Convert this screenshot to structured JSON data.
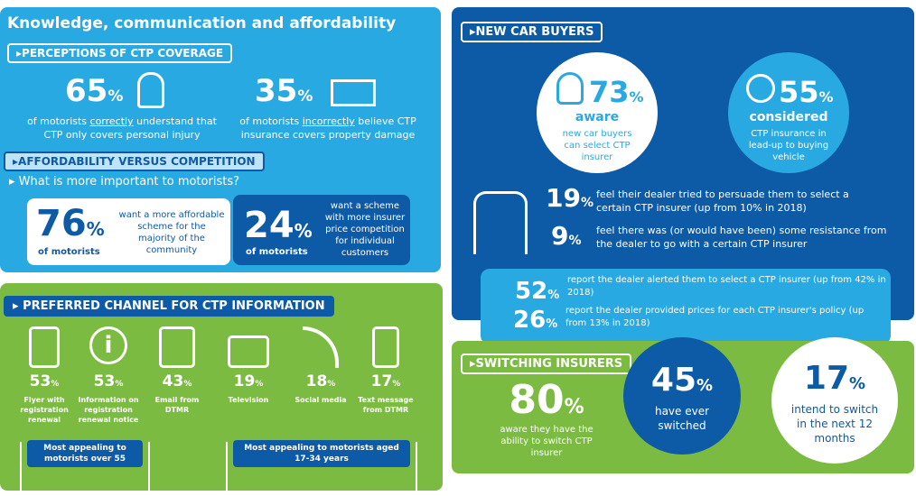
{
  "knowledge": {
    "title": "Knowledge, communication and affordability",
    "perceptions_tag": "PERCEPTIONS OF CTP COVERAGE",
    "stat1": {
      "value": "65",
      "unit": "%",
      "text_a": "of motorists ",
      "text_em": "correctly",
      "text_b": " understand that CTP only covers personal injury"
    },
    "stat2": {
      "value": "35",
      "unit": "%",
      "text_a": "of motorists ",
      "text_em": "incorrectly",
      "text_b": " believe CTP insurance covers property damage"
    },
    "affordability_tag": "AFFORDABILITY VERSUS COMPETITION",
    "question": "What is more important to motorists?",
    "card1": {
      "value": "76",
      "unit": "%",
      "label": "of motorists",
      "text": "want a more affordable scheme for the majority of the community"
    },
    "card2": {
      "value": "24",
      "unit": "%",
      "label": "of motorists",
      "text": "want a scheme with more insurer price competition for individual customers"
    }
  },
  "channel": {
    "tag": "PREFERRED CHANNEL FOR CTP INFORMATION",
    "items": [
      {
        "icon": "document-icon",
        "value": "53",
        "unit": "%",
        "label": "Flyer with registration renewal"
      },
      {
        "icon": "info-icon",
        "value": "53",
        "unit": "%",
        "label": "Information on registration renewal notice"
      },
      {
        "icon": "envelope-icon",
        "value": "43",
        "unit": "%",
        "label": "Email from DTMR"
      },
      {
        "icon": "tv-icon",
        "value": "19",
        "unit": "%",
        "label": "Television"
      },
      {
        "icon": "signal-icon",
        "value": "18",
        "unit": "%",
        "label": "Social media"
      },
      {
        "icon": "phone-icon",
        "value": "17",
        "unit": "%",
        "label": "Text message from DTMR"
      }
    ],
    "note1": "Most appealing to motorists over 55",
    "note2": "Most appealing to motorists aged 17-34 years"
  },
  "new_car": {
    "tag": "NEW CAR BUYERS",
    "aware": {
      "value": "73",
      "unit": "%",
      "word": "aware",
      "text": "new car buyers can select CTP insurer"
    },
    "considered": {
      "value": "55",
      "unit": "%",
      "word": "considered",
      "text": "CTP insurance in lead-up to buying vehicle"
    },
    "s19": {
      "value": "19",
      "unit": "%",
      "text": "feel their dealer tried to persuade them to select a certain CTP insurer (up from 10% in 2018)"
    },
    "s9": {
      "value": "9",
      "unit": "%",
      "text": "feel there was (or would have been) some resistance from the dealer to go with a certain CTP insurer"
    },
    "s52": {
      "value": "52",
      "unit": "%",
      "text": "report the dealer alerted them to select a CTP insurer (up from 42% in 2018)"
    },
    "s26": {
      "value": "26",
      "unit": "%",
      "text": "report the dealer provided prices for each CTP insurer's policy (up from 13% in 2018)"
    }
  },
  "switching": {
    "tag": "SWITCHING INSURERS",
    "s80": {
      "value": "80",
      "unit": "%",
      "text": "aware they have the ability to switch CTP insurer"
    },
    "s45": {
      "value": "45",
      "unit": "%",
      "text": "have ever switched"
    },
    "s17": {
      "value": "17",
      "unit": "%",
      "text": "intend to switch in the next 12 months"
    }
  },
  "colors": {
    "light_blue": "#29a9e1",
    "dark_blue": "#0d5aa7",
    "green": "#7cbb42"
  }
}
